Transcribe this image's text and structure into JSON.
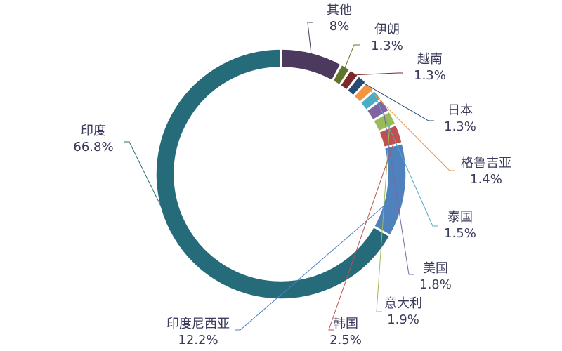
{
  "chart_data": {
    "type": "pie",
    "title": "",
    "donut": true,
    "legend": "none",
    "series": [
      {
        "name": "其他",
        "value": 8,
        "label": "8%",
        "color": "#4b3a5e"
      },
      {
        "name": "伊朗",
        "value": 1.3,
        "label": "1.3%",
        "color": "#61752a"
      },
      {
        "name": "越南",
        "value": 1.3,
        "label": "1.3%",
        "color": "#7b2a2a"
      },
      {
        "name": "日本",
        "value": 1.3,
        "label": "1.3%",
        "color": "#274b72"
      },
      {
        "name": "格鲁吉亚",
        "value": 1.4,
        "label": "1.4%",
        "color": "#f39441"
      },
      {
        "name": "泰国",
        "value": 1.5,
        "label": "1.5%",
        "color": "#4bacc6"
      },
      {
        "name": "美国",
        "value": 1.8,
        "label": "1.8%",
        "color": "#8064a2"
      },
      {
        "name": "意大利",
        "value": 1.9,
        "label": "1.9%",
        "color": "#9bbb59"
      },
      {
        "name": "韩国",
        "value": 2.5,
        "label": "2.5%",
        "color": "#c0504d"
      },
      {
        "name": "印度尼西亚",
        "value": 12.2,
        "label": "12.2%",
        "color": "#4f81bd"
      },
      {
        "name": "印度",
        "value": 66.8,
        "label": "66.8%",
        "color": "#256b7a"
      }
    ]
  }
}
